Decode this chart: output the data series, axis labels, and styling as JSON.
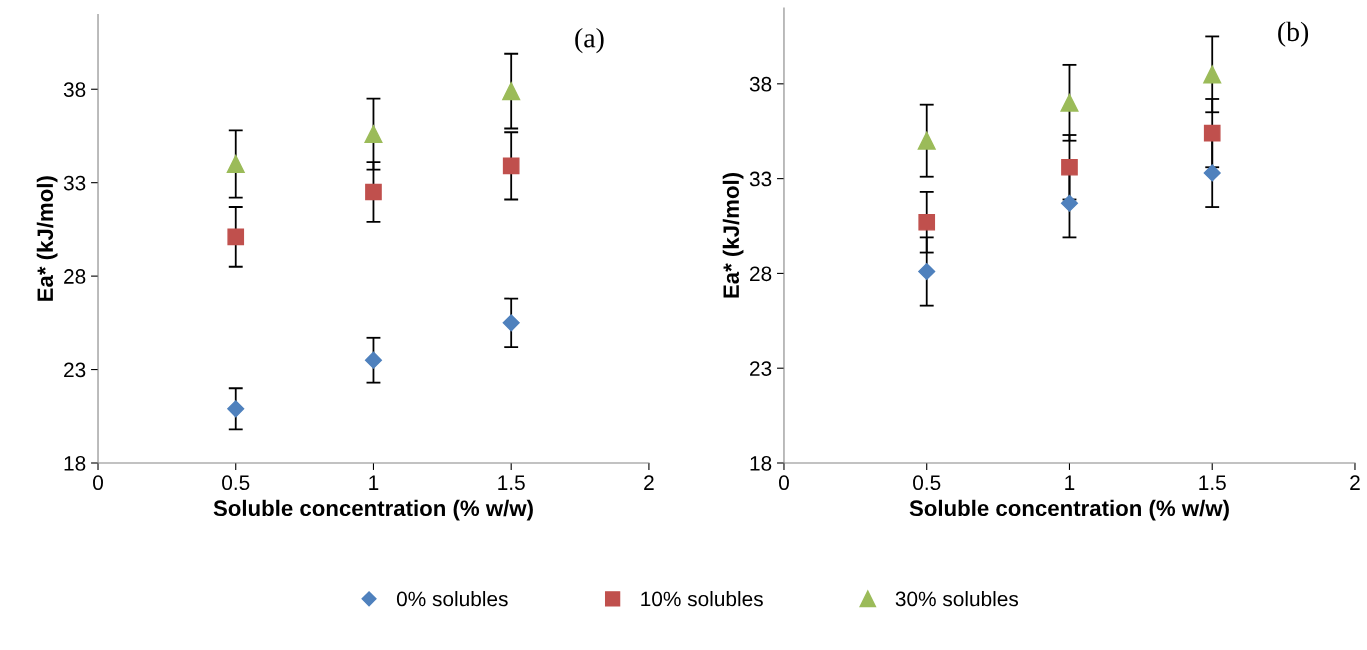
{
  "chart_data": [
    {
      "type": "scatter",
      "xlabel": "Soluble concentration (% w/w)",
      "ylabel": "Ea* (kJ/mol)",
      "annotations": [
        "(a)"
      ],
      "xlim": [
        0,
        2
      ],
      "xticks": [
        0,
        0.5,
        1,
        1.5,
        2
      ],
      "ylim": [
        18,
        42
      ],
      "yticks": [
        18,
        23,
        28,
        33,
        38
      ],
      "grid": false,
      "legend": "bottom",
      "series": [
        {
          "name": "0% solubles",
          "color": "#4f81bd",
          "marker": "diamond",
          "x": [
            0.5,
            1,
            1.5
          ],
          "values": [
            20.9,
            23.5,
            25.5
          ],
          "errors": [
            1.1,
            1.2,
            1.3
          ]
        },
        {
          "name": "10% solubles",
          "color": "#c0504d",
          "marker": "square",
          "x": [
            0.5,
            1,
            1.5
          ],
          "values": [
            30.1,
            32.5,
            33.9
          ],
          "errors": [
            1.6,
            1.6,
            1.8
          ]
        },
        {
          "name": "30% solubles",
          "color": "#9bbb59",
          "marker": "triangle",
          "x": [
            0.5,
            1,
            1.5
          ],
          "values": [
            34.0,
            35.6,
            37.9
          ],
          "errors": [
            1.8,
            1.9,
            2.0
          ]
        }
      ]
    },
    {
      "type": "scatter",
      "xlabel": "Soluble concentration (% w/w)",
      "ylabel": "Ea* (kJ/mol)",
      "annotations": [
        "(b)"
      ],
      "xlim": [
        0,
        2
      ],
      "xticks": [
        0,
        0.5,
        1,
        1.5,
        2
      ],
      "ylim": [
        18,
        42
      ],
      "yticks": [
        18,
        23,
        28,
        33,
        38
      ],
      "grid": false,
      "series": [
        {
          "color": "#4f81bd",
          "marker": "diamond",
          "x": [
            0.5,
            1,
            1.5
          ],
          "values": [
            28.1,
            31.7,
            33.3
          ],
          "errors": [
            1.8,
            1.8,
            1.8
          ]
        },
        {
          "color": "#c0504d",
          "marker": "square",
          "x": [
            0.5,
            1,
            1.5
          ],
          "values": [
            30.7,
            33.6,
            35.4
          ],
          "errors": [
            1.6,
            1.7,
            1.8
          ]
        },
        {
          "color": "#9bbb59",
          "marker": "triangle",
          "x": [
            0.5,
            1,
            1.5
          ],
          "values": [
            35.0,
            37.0,
            38.5
          ],
          "errors": [
            1.9,
            2.0,
            2.0
          ]
        }
      ]
    }
  ]
}
